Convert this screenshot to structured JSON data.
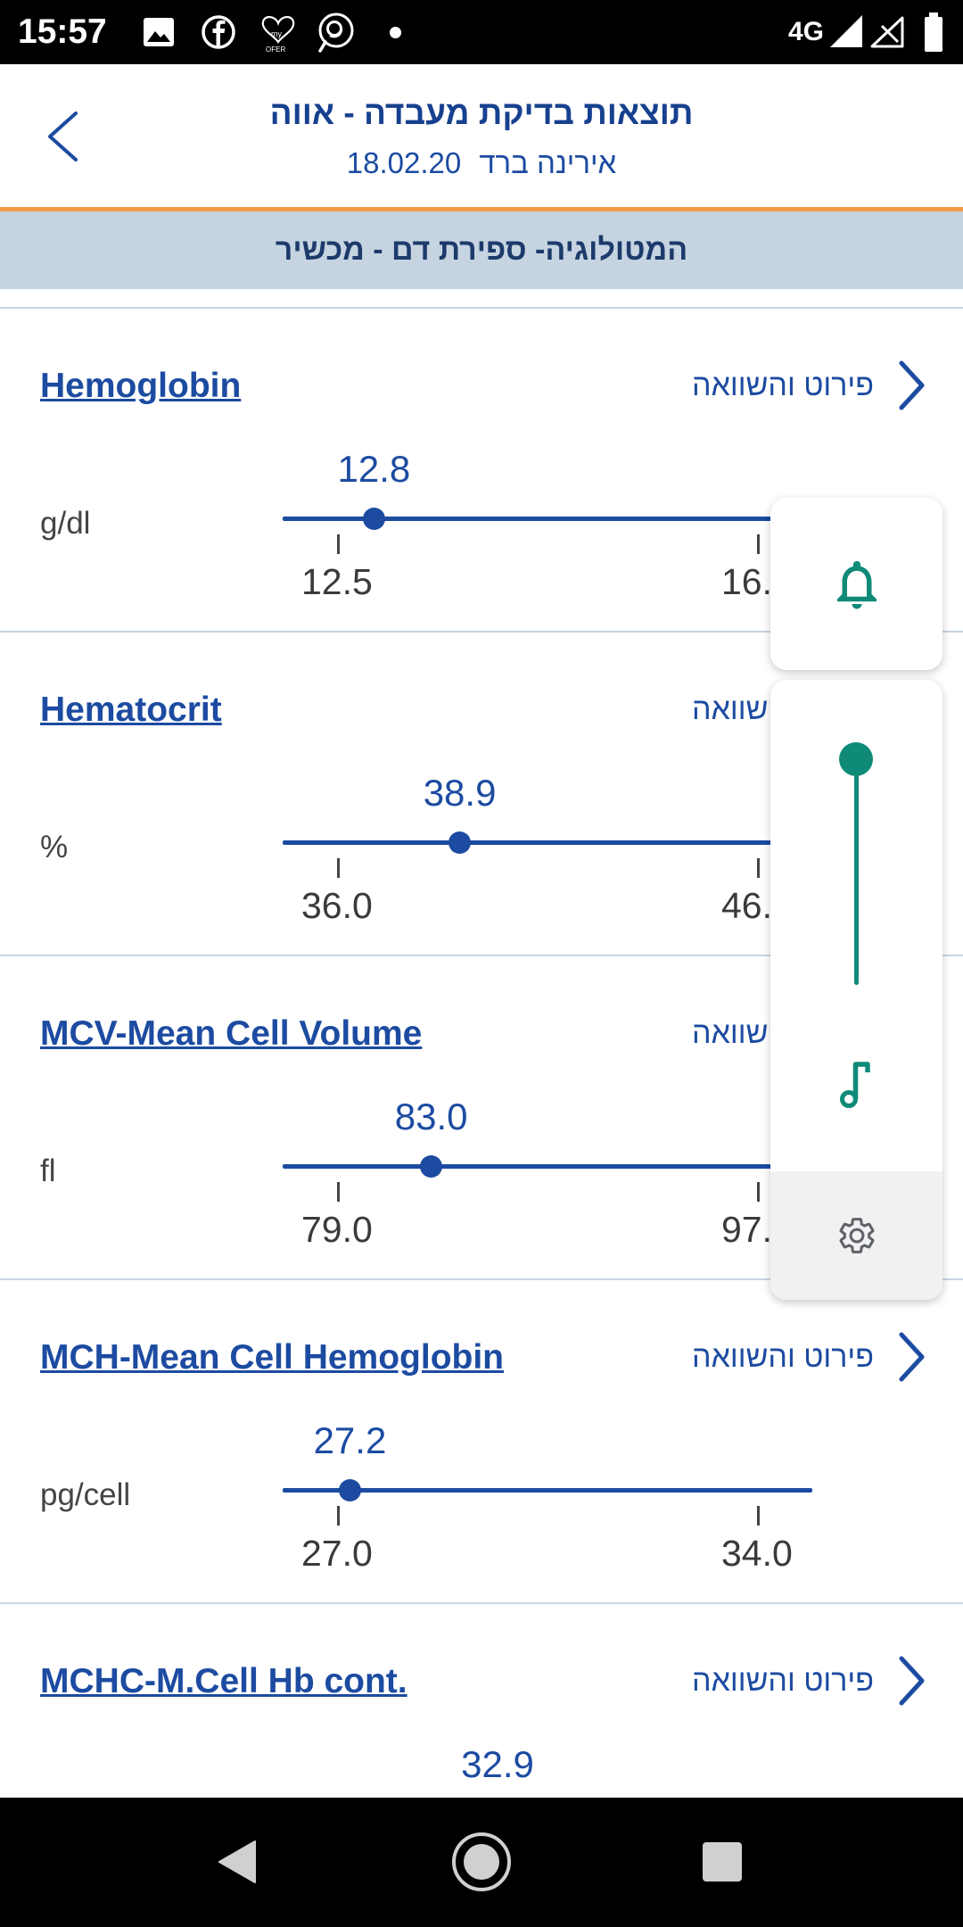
{
  "status_bar": {
    "time": "15:57",
    "network": "4G",
    "left_icons": [
      "image-icon",
      "facebook-icon",
      "my-ofer-icon",
      "app-icon",
      "dot-icon"
    ],
    "right_icons": [
      "signal-icon",
      "no-signal-icon",
      "battery-icon"
    ],
    "my_ofer_logo": {
      "line1": "my",
      "line2": "OFER"
    }
  },
  "header": {
    "back_icon": "chevron-left-icon",
    "title": "תוצאות בדיקת מעבדה - אווה",
    "patient_name": "אירינה ברד",
    "date": "18.02.20"
  },
  "section": {
    "title": "המטולוגיה- ספירת דם - מכשיר"
  },
  "tests": [
    {
      "name": "Hemoglobin",
      "unit": "g/dl",
      "value": "12.8",
      "range_min": "12.5",
      "range_max": "16.",
      "link": "פירוט והשוואה"
    },
    {
      "name": "Hematocrit",
      "unit": "%",
      "value": "38.9",
      "range_min": "36.0",
      "range_max": "46.",
      "link": "פירוט והשוואה"
    },
    {
      "name": "MCV-Mean Cell Volume",
      "unit": "fl",
      "value": "83.0",
      "range_min": "79.0",
      "range_max": "97.",
      "link": "פירוט והשוואה"
    },
    {
      "name": "MCH-Mean Cell Hemoglobin",
      "unit": "pg/cell",
      "value": "27.2",
      "range_min": "27.0",
      "range_max": "34.0",
      "link": "פירוט והשוואה"
    },
    {
      "name": "MCHC-M.Cell Hb cont.",
      "value": "32.9",
      "link": "פירוט והשוואה"
    }
  ],
  "volume_panel": {
    "ringer_icon": "bell-icon",
    "stream_icon": "music-note-icon",
    "settings_icon": "settings-icon",
    "level": 1.0
  },
  "nav_bar": {
    "icons": [
      "back-triangle-icon",
      "home-circle-icon",
      "recents-square-icon"
    ]
  },
  "colors": {
    "accent_blue": "#1c4ba1",
    "title_navy": "#17408f",
    "teal": "#0f8a78",
    "header_orange": "#f29b47",
    "section_bg": "#c6d4e1"
  }
}
